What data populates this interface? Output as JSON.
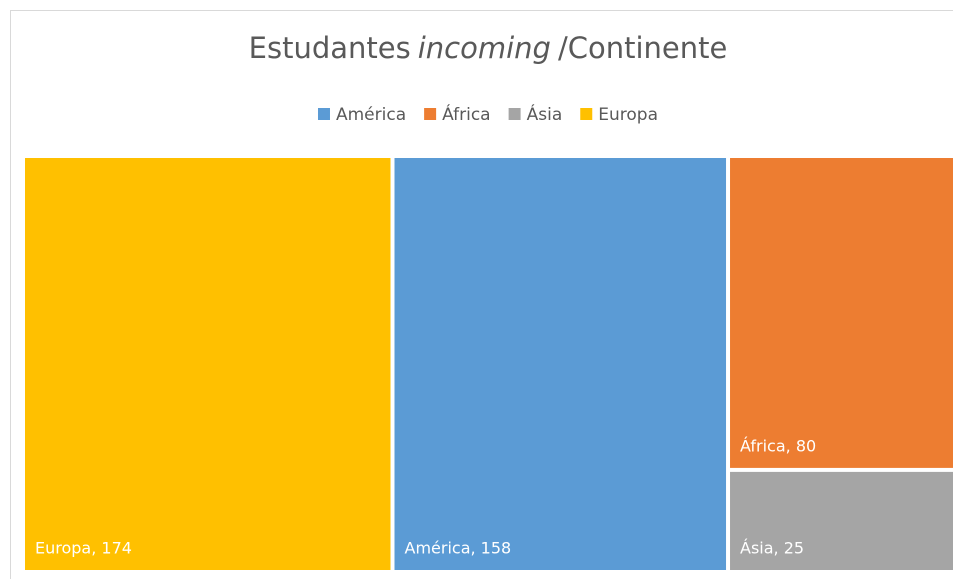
{
  "chart_data": {
    "type": "treemap",
    "title": [
      {
        "text": "Estudantes"
      },
      {
        "text": "incoming",
        "italic": true
      },
      {
        "text": "/Continente"
      }
    ],
    "categories": [
      "América",
      "África",
      "Ásia",
      "Europa"
    ],
    "values": [
      158,
      80,
      25,
      174
    ],
    "value_labels": [
      "América, 158",
      "África, 80",
      "Ásia, 25",
      "Europa, 174"
    ],
    "colors": [
      "#5b9bd5",
      "#ed7d31",
      "#a5a5a5",
      "#ffc000"
    ],
    "legend": "top"
  }
}
